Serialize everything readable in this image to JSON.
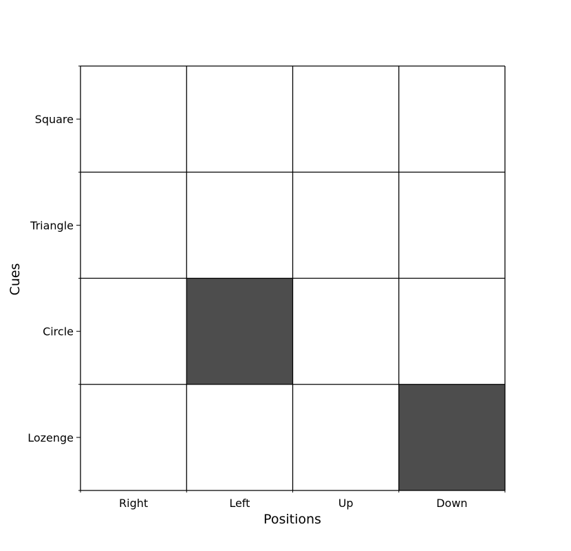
{
  "chart_data": {
    "type": "heatmap",
    "title": "",
    "xlabel": "Positions",
    "ylabel": "Cues",
    "x_categories": [
      "Right",
      "Left",
      "Up",
      "Down"
    ],
    "y_categories": [
      "Square",
      "Triangle",
      "Circle",
      "Lozenge"
    ],
    "values": [
      [
        0,
        0,
        0,
        0
      ],
      [
        0,
        0,
        0,
        0
      ],
      [
        0,
        1,
        0,
        0
      ],
      [
        0,
        0,
        0,
        1
      ]
    ],
    "colors": {
      "on": "#4d4d4d",
      "off": "#ffffff",
      "grid": "#000000"
    },
    "grid": true,
    "legend": "none"
  }
}
